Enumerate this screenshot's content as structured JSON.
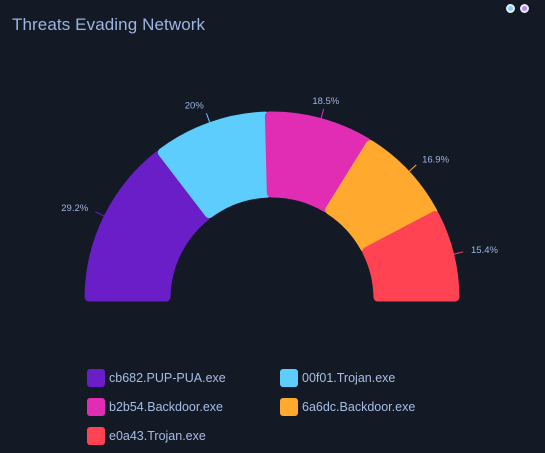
{
  "header": {
    "title": "Threats Evading Network",
    "controls": [
      {
        "name": "control-dot-blue",
        "color": "#7fd3f7"
      },
      {
        "name": "control-dot-purple",
        "color": "#b78cf2"
      }
    ]
  },
  "colors": {
    "background": "#131a26",
    "label_text": "#9db4e0"
  },
  "chart_data": {
    "type": "pie",
    "subtype": "semi-donut",
    "title": "Threats Evading Network",
    "legend_position": "bottom",
    "slices": [
      {
        "name": "cb682.PUP-PUA.exe",
        "value": 29.2,
        "label": "29.2%",
        "color": "#6a1ec7"
      },
      {
        "name": "00f01.Trojan.exe",
        "value": 20.0,
        "label": "20%",
        "color": "#5ccdfc"
      },
      {
        "name": "b2b54.Backdoor.exe",
        "value": 18.5,
        "label": "18.5%",
        "color": "#e02db3"
      },
      {
        "name": "6a6dc.Backdoor.exe",
        "value": 16.9,
        "label": "16.9%",
        "color": "#ffa92f"
      },
      {
        "name": "e0a43.Trojan.exe",
        "value": 15.4,
        "label": "15.4%",
        "color": "#ff4352"
      }
    ]
  }
}
